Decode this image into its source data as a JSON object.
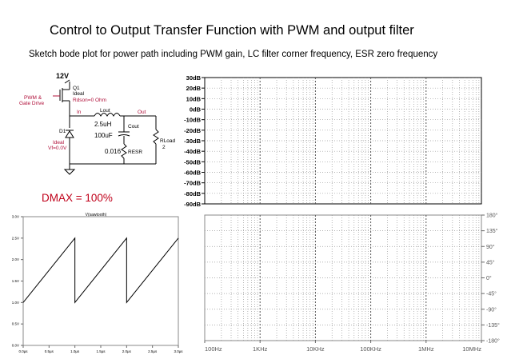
{
  "header": {
    "title": "Control to Output Transfer Function with PWM and output filter",
    "subtitle": "Sketch bode plot for power path including PWM gain, LC filter corner frequency, ESR zero frequency"
  },
  "schematic": {
    "supply_label": "12V",
    "drive_label_line1": "PWM &",
    "drive_label_line2": "Gate Drive",
    "switch_name": "Q1",
    "switch_model": "Ideal",
    "switch_param": "Rdson=0 Ohm",
    "node_in": "In",
    "node_out": "Out",
    "inductor_name": "Lout",
    "inductor_value": "2.5uH",
    "diode_name": "D1",
    "diode_model": "Ideal",
    "diode_param": "Vf=0.0V",
    "cap_name": "Cout",
    "cap_value": "100uF",
    "esr_name": "RESR",
    "esr_value": "0.016",
    "load_name": "RLoad",
    "load_value": "2"
  },
  "dmax_label": "DMAX = 100%",
  "colors": {
    "accent_red": "#c0001a",
    "schematic_red": "#b0103a",
    "grid": "#999999"
  },
  "chart_data": [
    {
      "type": "line",
      "title": "V(sawtooth)",
      "x_tick_labels": [
        "0.0µs",
        "0.5µs",
        "1.0µs",
        "1.5µs",
        "2.0µs",
        "2.5µs",
        "3.0µs"
      ],
      "y_tick_labels": [
        "0.0V",
        "0.5V",
        "1.0V",
        "1.5V",
        "2.0V",
        "2.5V",
        "3.0V"
      ],
      "xlim": [
        0,
        3.0
      ],
      "ylim": [
        0,
        3.0
      ],
      "series": [
        {
          "x": [
            0,
            1.0,
            1.0,
            2.0,
            2.0,
            3.0
          ],
          "y": [
            1.0,
            2.5,
            1.0,
            2.5,
            1.0,
            2.5
          ]
        }
      ]
    },
    {
      "type": "line",
      "title": "",
      "y_tick_labels": [
        "30dB",
        "20dB",
        "10dB",
        "0dB",
        "-10dB",
        "-20dB",
        "-30dB",
        "-40dB",
        "-50dB",
        "-60dB",
        "-70dB",
        "-80dB",
        "-90dB"
      ],
      "ylim": [
        -90,
        30
      ],
      "x_scale": "log",
      "grid": true,
      "series": []
    },
    {
      "type": "line",
      "title": "",
      "x_tick_labels": [
        "100Hz",
        "1KHz",
        "10KHz",
        "100KHz",
        "1MHz",
        "10MHz"
      ],
      "y_tick_labels": [
        "180°",
        "135°",
        "90°",
        "45°",
        "0°",
        "-45°",
        "-90°",
        "-135°",
        "-180°"
      ],
      "xlim": [
        100,
        10000000
      ],
      "ylim": [
        -180,
        180
      ],
      "x_scale": "log",
      "grid": true,
      "series": []
    }
  ]
}
